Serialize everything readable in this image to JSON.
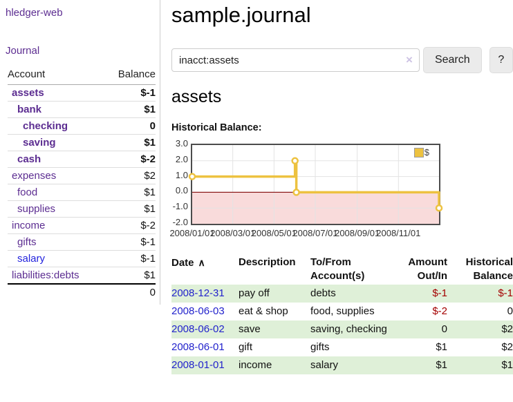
{
  "app": {
    "brand": "hledger-web"
  },
  "sidebar": {
    "journal_label": "Journal",
    "accounts": {
      "col_account": "Account",
      "col_balance": "Balance",
      "rows": [
        {
          "name": "assets",
          "indent": 1,
          "bold": true,
          "color": "purple",
          "balance": "$-1",
          "bal_class": "neg"
        },
        {
          "name": "bank",
          "indent": 2,
          "bold": true,
          "color": "purple",
          "balance": "$1",
          "bal_class": ""
        },
        {
          "name": "checking",
          "indent": 3,
          "bold": true,
          "color": "purple",
          "balance": "0",
          "bal_class": ""
        },
        {
          "name": "saving",
          "indent": 3,
          "bold": true,
          "color": "purple",
          "balance": "$1",
          "bal_class": ""
        },
        {
          "name": "cash",
          "indent": 2,
          "bold": true,
          "color": "purple",
          "balance": "$-2",
          "bal_class": "neg"
        },
        {
          "name": "expenses",
          "indent": 1,
          "bold": false,
          "color": "purple",
          "balance": "$2",
          "bal_class": ""
        },
        {
          "name": "food",
          "indent": 2,
          "bold": false,
          "color": "purple",
          "balance": "$1",
          "bal_class": ""
        },
        {
          "name": "supplies",
          "indent": 2,
          "bold": false,
          "color": "purple",
          "balance": "$1",
          "bal_class": ""
        },
        {
          "name": "income",
          "indent": 1,
          "bold": false,
          "color": "purple",
          "balance": "$-2",
          "bal_class": "rose"
        },
        {
          "name": "gifts",
          "indent": 2,
          "bold": false,
          "color": "purple",
          "balance": "$-1",
          "bal_class": "rose"
        },
        {
          "name": "salary",
          "indent": 2,
          "bold": false,
          "color": "blue",
          "balance": "$-1",
          "bal_class": "rose"
        },
        {
          "name": "liabilities:debts",
          "indent": 1,
          "bold": false,
          "color": "purple",
          "balance": "$1",
          "bal_class": ""
        }
      ],
      "total": "0"
    }
  },
  "main": {
    "title": "sample.journal",
    "search": {
      "value": "inacct:assets",
      "clear_icon": "×",
      "button_label": "Search",
      "help_label": "?"
    },
    "account_heading": "assets",
    "chart_label": "Historical Balance:"
  },
  "chart_data": {
    "type": "line",
    "step": true,
    "title": "Historical Balance",
    "series": [
      {
        "name": "$",
        "color": "#edc240",
        "points": [
          {
            "x": "2008-01-01",
            "y": 1
          },
          {
            "x": "2008-06-01",
            "y": 2
          },
          {
            "x": "2008-06-03",
            "y": 0
          },
          {
            "x": "2008-12-31",
            "y": -1
          }
        ]
      }
    ],
    "x_range": [
      "2008-01-01",
      "2008-12-31"
    ],
    "ylim": [
      -2,
      3
    ],
    "y_ticks": [
      {
        "label": "3.0",
        "value": 3
      },
      {
        "label": "2.0",
        "value": 2
      },
      {
        "label": "1.0",
        "value": 1
      },
      {
        "label": "0.0",
        "value": 0
      },
      {
        "label": "-1.0",
        "value": -1
      },
      {
        "label": "-2.0",
        "value": -2
      }
    ],
    "x_ticks": [
      {
        "label": "2008/01/01",
        "date": "2008-01-01"
      },
      {
        "label": "2008/03/01",
        "date": "2008-03-01"
      },
      {
        "label": "2008/05/01",
        "date": "2008-05-01"
      },
      {
        "label": "2008/07/01",
        "date": "2008-07-01"
      },
      {
        "label": "2008/09/01",
        "date": "2008-09-01"
      },
      {
        "label": "2008/11/01",
        "date": "2008-11-01"
      }
    ],
    "grid": true,
    "legend": {
      "label": "$",
      "position": "top-right"
    },
    "negative_region_color": "#f9dbdb",
    "zero_line_color": "#8b1a1a",
    "gridline_color": "#e3e3e3"
  },
  "register": {
    "headers": [
      {
        "label": "Date",
        "sort_icon": "∧",
        "align": "left"
      },
      {
        "label": "Description",
        "align": "left"
      },
      {
        "label": "To/From Account(s)",
        "align": "left"
      },
      {
        "label": "Amount Out/In",
        "align": "right"
      },
      {
        "label": "Historical Balance",
        "align": "right"
      }
    ],
    "rows": [
      {
        "date": "2008-12-31",
        "description": "pay off",
        "accounts": "debts",
        "amount": "$-1",
        "amount_class": "neg",
        "balance": "$-1",
        "balance_class": "neg"
      },
      {
        "date": "2008-06-03",
        "description": "eat & shop",
        "accounts": "food, supplies",
        "amount": "$-2",
        "amount_class": "neg",
        "balance": "0",
        "balance_class": ""
      },
      {
        "date": "2008-06-02",
        "description": "save",
        "accounts": "saving, checking",
        "amount": "0",
        "amount_class": "",
        "balance": "$2",
        "balance_class": ""
      },
      {
        "date": "2008-06-01",
        "description": "gift",
        "accounts": "gifts",
        "amount": "$1",
        "amount_class": "",
        "balance": "$2",
        "balance_class": ""
      },
      {
        "date": "2008-01-01",
        "description": "income",
        "accounts": "salary",
        "amount": "$1",
        "amount_class": "",
        "balance": "$1",
        "balance_class": ""
      }
    ]
  },
  "colors": {
    "link_purple": "#5c2d91",
    "link_blue": "#2222dd",
    "negative": "#a40000",
    "negative_muted": "#c47c7c",
    "stripe_green": "#dff0d8",
    "chart_line": "#edc240"
  }
}
